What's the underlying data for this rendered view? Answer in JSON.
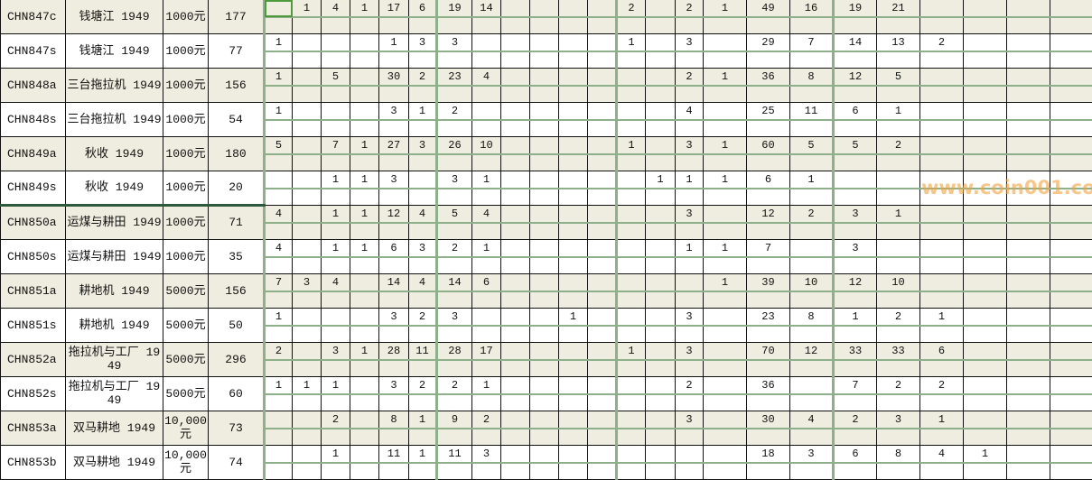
{
  "sheet": {
    "selected_cell": {
      "row": 0,
      "col": 0
    },
    "accent_green": "#8db08a",
    "row_shade": "#efeddf",
    "rows": [
      {
        "id": "CHN847c",
        "name": "钱塘江 1949",
        "denomination": "1000元",
        "count": "177",
        "values": [
          "",
          "1",
          "4",
          "1",
          "17",
          "6",
          "19",
          "14",
          "",
          "",
          "",
          "",
          "2",
          "",
          "2",
          "1",
          "49",
          "16",
          "19",
          "21",
          "",
          "",
          "",
          ""
        ]
      },
      {
        "id": "CHN847s",
        "name": "钱塘江 1949",
        "denomination": "1000元",
        "count": "77",
        "values": [
          "1",
          "",
          "",
          "",
          "1",
          "3",
          "3",
          "",
          "",
          "",
          "",
          "",
          "1",
          "",
          "3",
          "",
          "29",
          "7",
          "14",
          "13",
          "2",
          "",
          "",
          ""
        ]
      },
      {
        "id": "CHN848a",
        "name": "三台拖拉机 1949",
        "denomination": "1000元",
        "count": "156",
        "values": [
          "1",
          "",
          "5",
          "",
          "30",
          "2",
          "23",
          "4",
          "",
          "",
          "",
          "",
          "",
          "",
          "2",
          "1",
          "36",
          "8",
          "12",
          "5",
          "",
          "",
          "",
          ""
        ]
      },
      {
        "id": "CHN848s",
        "name": "三台拖拉机 1949",
        "denomination": "1000元",
        "count": "54",
        "values": [
          "1",
          "",
          "",
          "",
          "3",
          "1",
          "2",
          "",
          "",
          "",
          "",
          "",
          "",
          "",
          "4",
          "",
          "25",
          "11",
          "6",
          "1",
          "",
          "",
          "",
          ""
        ]
      },
      {
        "id": "CHN849a",
        "name": "秋收 1949",
        "denomination": "1000元",
        "count": "180",
        "values": [
          "5",
          "",
          "7",
          "1",
          "27",
          "3",
          "26",
          "10",
          "",
          "",
          "",
          "",
          "1",
          "",
          "3",
          "1",
          "60",
          "5",
          "5",
          "2",
          "",
          "",
          "",
          ""
        ]
      },
      {
        "id": "CHN849s",
        "name": "秋收 1949",
        "denomination": "1000元",
        "count": "20",
        "values": [
          "",
          "",
          "1",
          "1",
          "3",
          "",
          "3",
          "1",
          "",
          "",
          "",
          "",
          "",
          "1",
          "1",
          "1",
          "6",
          "1",
          "",
          "",
          "",
          "",
          "",
          ""
        ]
      },
      {
        "id": "CHN850a",
        "name": "运煤与耕田 1949",
        "denomination": "1000元",
        "count": "71",
        "values": [
          "4",
          "",
          "1",
          "1",
          "12",
          "4",
          "5",
          "4",
          "",
          "",
          "",
          "",
          "",
          "",
          "3",
          "",
          "12",
          "2",
          "3",
          "1",
          "",
          "",
          "",
          ""
        ]
      },
      {
        "id": "CHN850s",
        "name": "运煤与耕田 1949",
        "denomination": "1000元",
        "count": "35",
        "values": [
          "4",
          "",
          "1",
          "1",
          "6",
          "3",
          "2",
          "1",
          "",
          "",
          "",
          "",
          "",
          "",
          "1",
          "1",
          "7",
          "",
          "3",
          "",
          "",
          "",
          "",
          ""
        ]
      },
      {
        "id": "CHN851a",
        "name": "耕地机 1949",
        "denomination": "5000元",
        "count": "156",
        "values": [
          "7",
          "3",
          "4",
          "",
          "14",
          "4",
          "14",
          "6",
          "",
          "",
          "",
          "",
          "",
          "",
          "",
          "1",
          "39",
          "10",
          "12",
          "10",
          "",
          "",
          "",
          ""
        ]
      },
      {
        "id": "CHN851s",
        "name": "耕地机 1949",
        "denomination": "5000元",
        "count": "50",
        "values": [
          "1",
          "",
          "",
          "",
          "3",
          "2",
          "3",
          "",
          "",
          "",
          "1",
          "",
          "",
          "",
          "3",
          "",
          "23",
          "8",
          "1",
          "2",
          "1",
          "",
          "",
          ""
        ]
      },
      {
        "id": "CHN852a",
        "name": "拖拉机与工厂 1949",
        "denomination": "5000元",
        "count": "296",
        "values": [
          "2",
          "",
          "3",
          "1",
          "28",
          "11",
          "28",
          "17",
          "",
          "",
          "",
          "",
          "1",
          "",
          "3",
          "",
          "70",
          "12",
          "33",
          "33",
          "6",
          "",
          "",
          ""
        ]
      },
      {
        "id": "CHN852s",
        "name": "拖拉机与工厂 1949",
        "denomination": "5000元",
        "count": "60",
        "values": [
          "1",
          "1",
          "1",
          "",
          "3",
          "2",
          "2",
          "1",
          "",
          "",
          "",
          "",
          "",
          "",
          "2",
          "",
          "36",
          "",
          "7",
          "2",
          "2",
          "",
          "",
          ""
        ]
      },
      {
        "id": "CHN853a",
        "name": "双马耕地 1949",
        "denomination": "10,000 元",
        "count": "73",
        "values": [
          "",
          "",
          "2",
          "",
          "8",
          "1",
          "9",
          "2",
          "",
          "",
          "",
          "",
          "",
          "",
          "3",
          "",
          "30",
          "4",
          "2",
          "3",
          "1",
          "",
          "",
          ""
        ]
      },
      {
        "id": "CHN853b",
        "name": "双马耕地 1949",
        "denomination": "10,000 元",
        "count": "74",
        "values": [
          "",
          "",
          "1",
          "",
          "11",
          "1",
          "11",
          "3",
          "",
          "",
          "",
          "",
          "",
          "",
          "",
          "",
          "18",
          "3",
          "6",
          "8",
          "4",
          "1",
          "",
          ""
        ]
      }
    ]
  },
  "watermark": "www.coin001.com"
}
